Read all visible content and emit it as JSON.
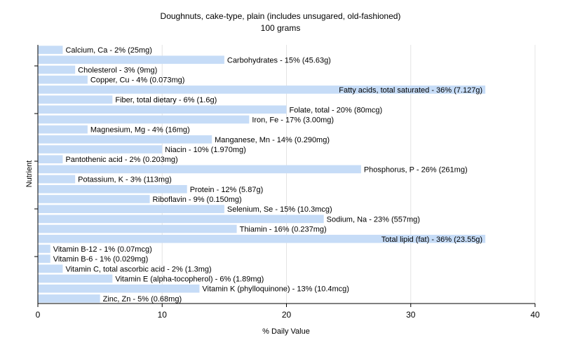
{
  "chart_data": {
    "type": "bar",
    "orientation": "horizontal",
    "title": "Doughnuts, cake-type, plain (includes unsugared, old-fashioned)",
    "subtitle": "100 grams",
    "xlabel": "% Daily Value",
    "ylabel": "Nutrient",
    "xlim": [
      0,
      40
    ],
    "xticks": [
      0,
      10,
      20,
      30,
      40
    ],
    "grid": true,
    "bar_color": "#c6dcf7",
    "categories": [
      "Calcium, Ca",
      "Carbohydrates",
      "Cholesterol",
      "Copper, Cu",
      "Fatty acids, total saturated",
      "Fiber, total dietary",
      "Folate, total",
      "Iron, Fe",
      "Magnesium, Mg",
      "Manganese, Mn",
      "Niacin",
      "Pantothenic acid",
      "Phosphorus, P",
      "Potassium, K",
      "Protein",
      "Riboflavin",
      "Selenium, Se",
      "Sodium, Na",
      "Thiamin",
      "Total lipid (fat)",
      "Vitamin B-12",
      "Vitamin B-6",
      "Vitamin C, total ascorbic acid",
      "Vitamin E (alpha-tocopherol)",
      "Vitamin K (phylloquinone)",
      "Zinc, Zn"
    ],
    "values": [
      2,
      15,
      3,
      4,
      36,
      6,
      20,
      17,
      4,
      14,
      10,
      2,
      26,
      3,
      12,
      9,
      15,
      23,
      16,
      36,
      1,
      1,
      2,
      6,
      13,
      5
    ],
    "labels": [
      "Calcium, Ca - 2% (25mg)",
      "Carbohydrates - 15% (45.63g)",
      "Cholesterol - 3% (9mg)",
      "Copper, Cu - 4% (0.073mg)",
      "Fatty acids, total saturated - 36% (7.127g)",
      "Fiber, total dietary - 6% (1.6g)",
      "Folate, total - 20% (80mcg)",
      "Iron, Fe - 17% (3.00mg)",
      "Magnesium, Mg - 4% (16mg)",
      "Manganese, Mn - 14% (0.290mg)",
      "Niacin - 10% (1.970mg)",
      "Pantothenic acid - 2% (0.203mg)",
      "Phosphorus, P - 26% (261mg)",
      "Potassium, K - 3% (113mg)",
      "Protein - 12% (5.87g)",
      "Riboflavin - 9% (0.150mg)",
      "Selenium, Se - 15% (10.3mcg)",
      "Sodium, Na - 23% (557mg)",
      "Thiamin - 16% (0.237mg)",
      "Total lipid (fat) - 36% (23.55g)",
      "Vitamin B-12 - 1% (0.07mcg)",
      "Vitamin B-6 - 1% (0.029mg)",
      "Vitamin C, total ascorbic acid - 2% (1.3mg)",
      "Vitamin E (alpha-tocopherol) - 6% (1.89mg)",
      "Vitamin K (phylloquinone) - 13% (10.4mcg)",
      "Zinc, Zn - 5% (0.68mg)"
    ]
  }
}
